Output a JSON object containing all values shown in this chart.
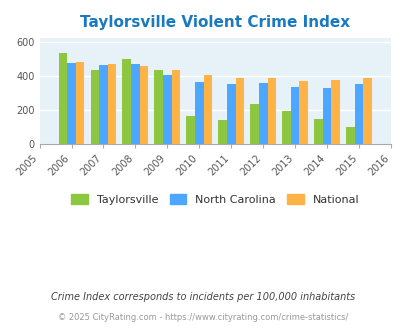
{
  "title": "Taylorsville Violent Crime Index",
  "years": [
    2006,
    2007,
    2008,
    2009,
    2010,
    2011,
    2012,
    2013,
    2014,
    2015
  ],
  "taylorsville": [
    530,
    435,
    500,
    435,
    165,
    140,
    235,
    195,
    145,
    100
  ],
  "north_carolina": [
    475,
    465,
    468,
    405,
    360,
    350,
    355,
    335,
    325,
    350
  ],
  "national": [
    478,
    467,
    458,
    430,
    405,
    387,
    387,
    368,
    375,
    383
  ],
  "colors": {
    "taylorsville": "#8dc63f",
    "north_carolina": "#4da6ff",
    "national": "#ffb347"
  },
  "ylim": [
    0,
    620
  ],
  "yticks": [
    0,
    200,
    400,
    600
  ],
  "plot_bg": "#e6f2f8",
  "legend_labels": [
    "Taylorsville",
    "North Carolina",
    "National"
  ],
  "footnote1": "Crime Index corresponds to incidents per 100,000 inhabitants",
  "footnote2": "© 2025 CityRating.com - https://www.cityrating.com/crime-statistics/",
  "title_color": "#1a7abf",
  "footnote1_color": "#444444",
  "footnote2_color": "#999999"
}
